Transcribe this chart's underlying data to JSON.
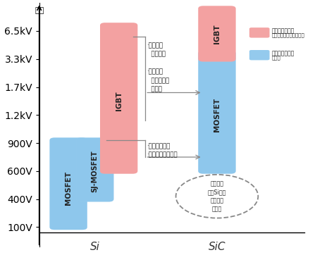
{
  "ylabel": "耐圧",
  "ytick_labels": [
    "100V",
    "400V",
    "600V",
    "900V",
    "1.2kV",
    "1.7kV",
    "3.3kV",
    "6.5kV"
  ],
  "ytick_values": [
    1,
    2,
    3,
    4,
    5,
    6,
    7,
    8
  ],
  "xlabel_si": "Si",
  "xlabel_sic": "SiC",
  "bg_color": "#ffffff",
  "pink_color": "#f08080",
  "pink_light": "#f5b8b8",
  "blue_color": "#70b8e8",
  "blue_light": "#a8d4f0",
  "legend_pink_label1": "少数载流子器件",
  "legend_pink_label2": "：导通电阻低，但速度慢",
  "legend_blue_label1": "多数载流子器件",
  "legend_blue_label2": "：高速",
  "annot_upper": "·关断损耗\n  显著降低\n\n·频率更高\n  有助于设备\n  小型化",
  "annot_lower": "·贴片面积缩减\n·恢复损耗大幅降低",
  "dashed_text": "可制作，\n但与Si相比\n优势较小\n的范围"
}
